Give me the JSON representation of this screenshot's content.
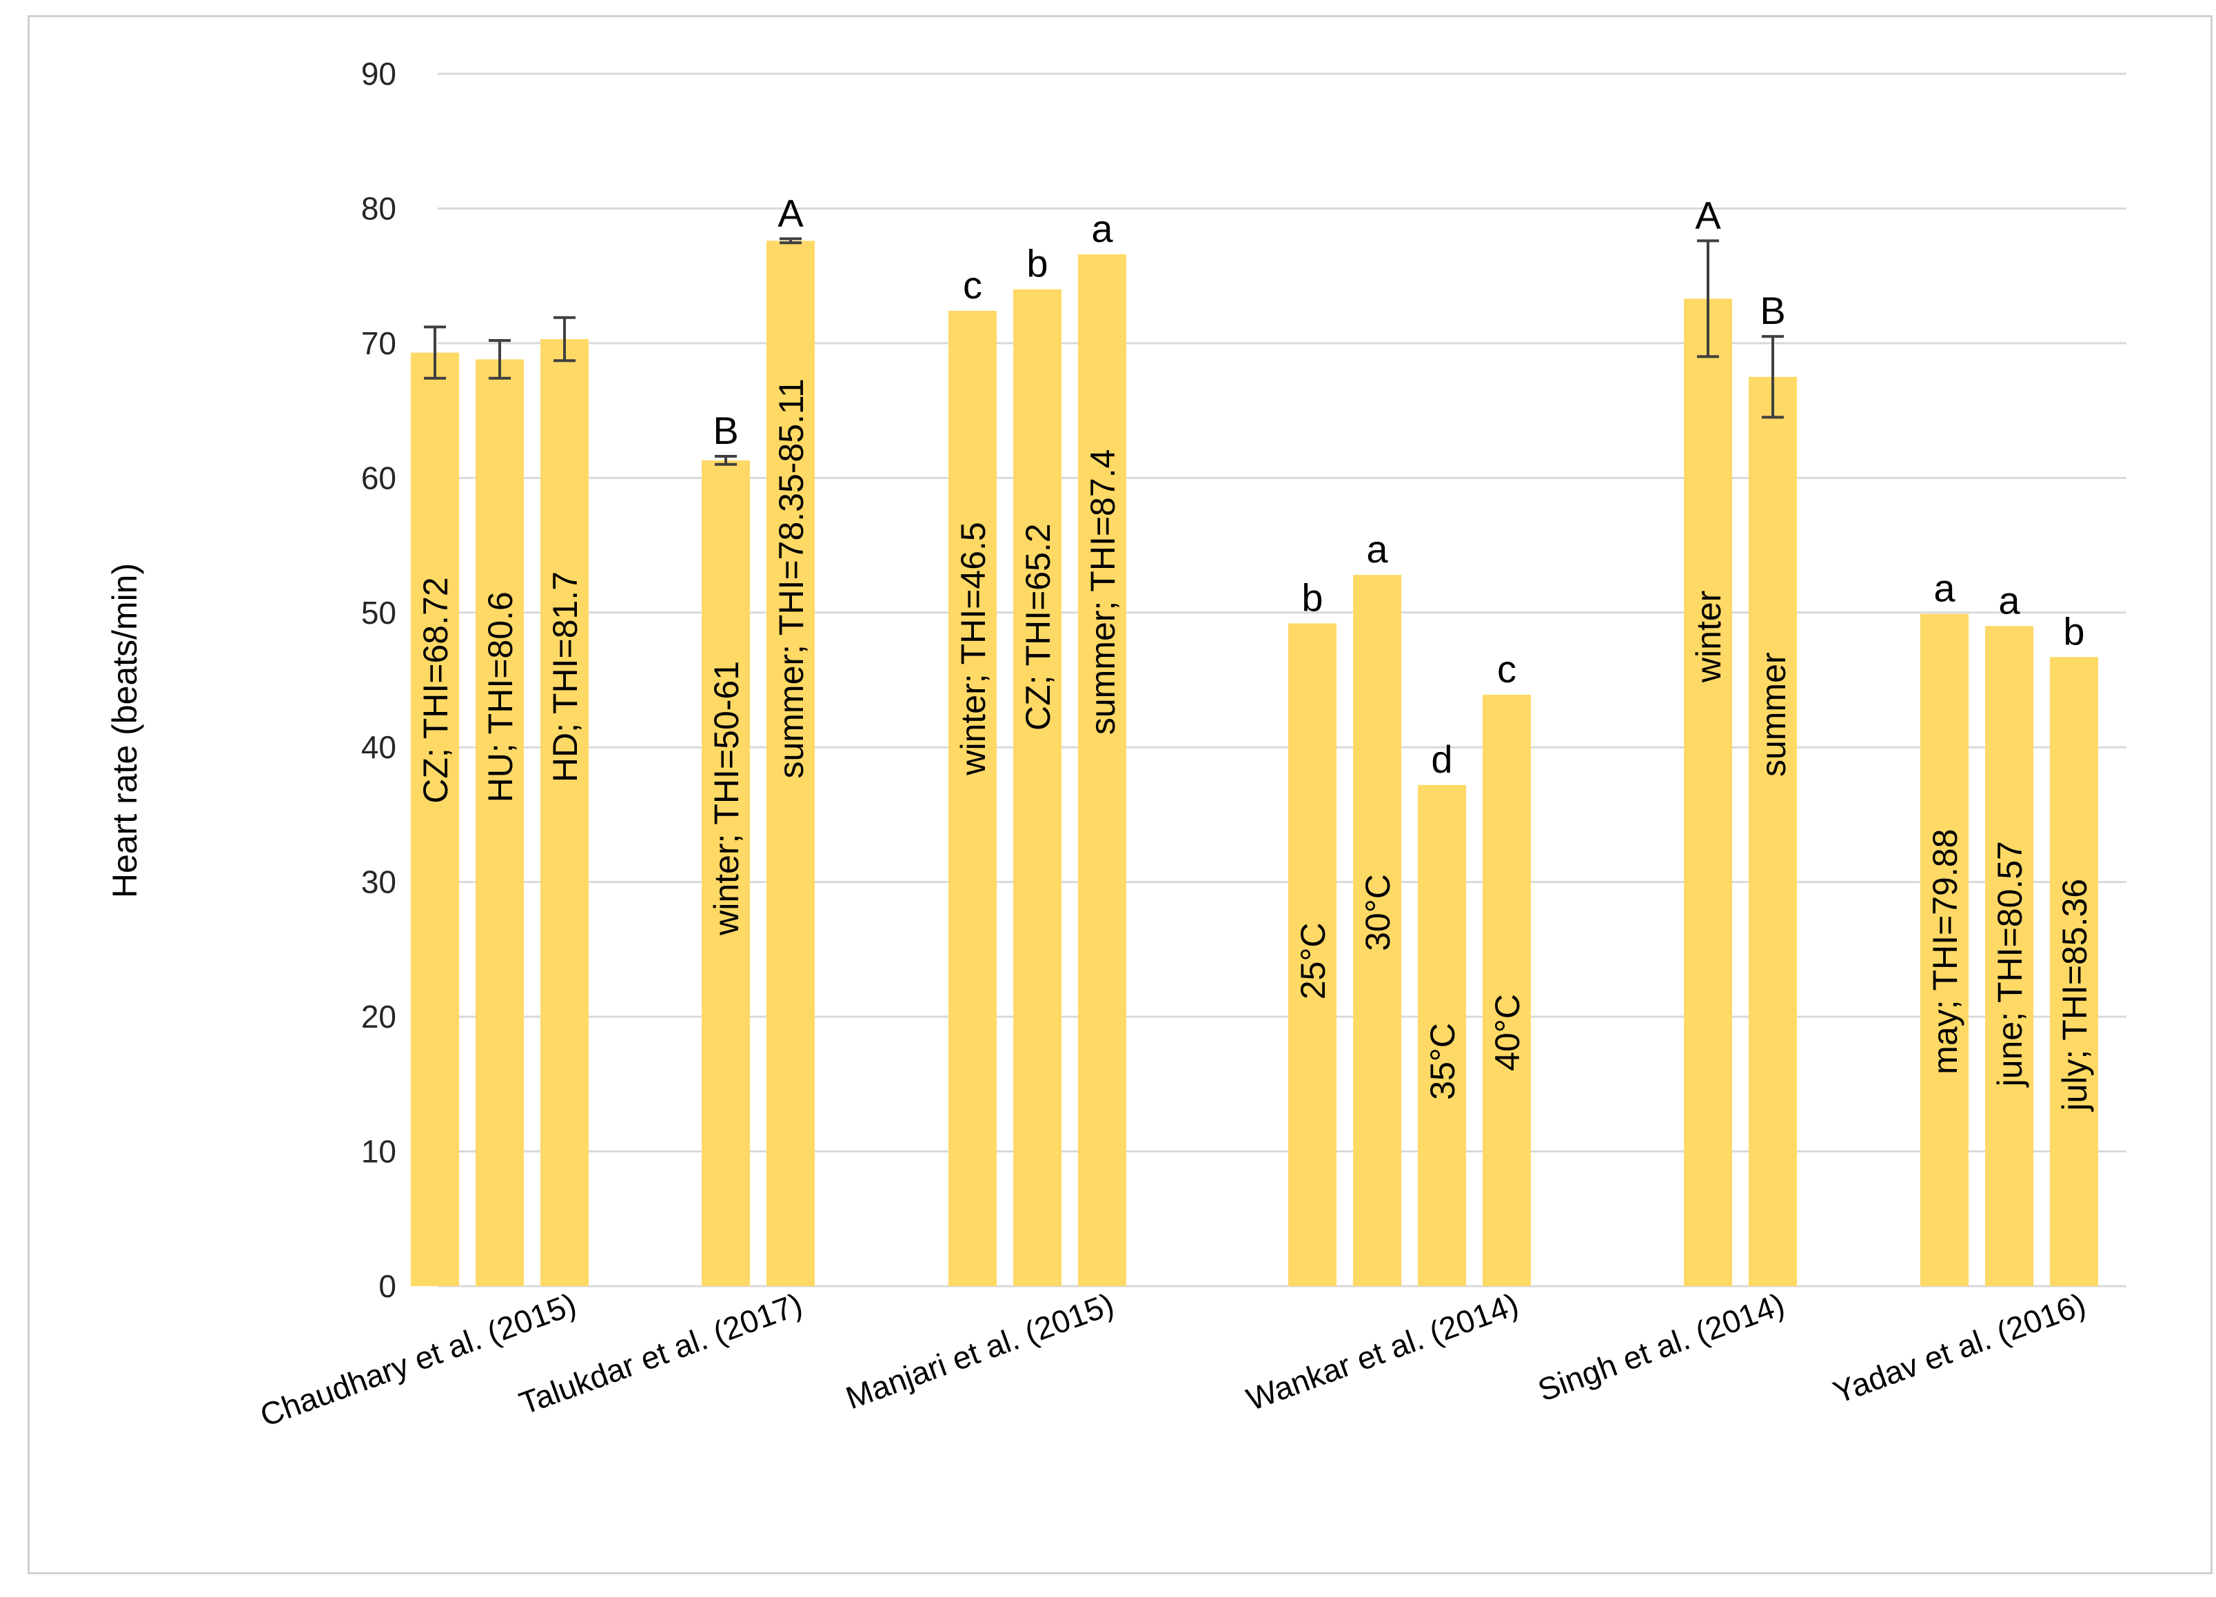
{
  "chart_data": {
    "type": "bar",
    "title": "",
    "xlabel": "",
    "ylabel": "Heart rate (beats/min)",
    "ylim": [
      0,
      90
    ],
    "yticks": [
      0,
      10,
      20,
      30,
      40,
      50,
      60,
      70,
      80,
      90
    ],
    "grid": true,
    "bar_color": "#ffd966",
    "grid_color": "#d9d9d9",
    "error_bar_color": "#404040",
    "groups": [
      {
        "name": "Chaudhary et al. (2015)",
        "bars": [
          {
            "label": "CZ; THI=68.72",
            "value": 69.3,
            "error": 1.9,
            "sig": ""
          },
          {
            "label": "HU; THI=80.6",
            "value": 68.8,
            "error": 1.4,
            "sig": ""
          },
          {
            "label": "HD; THI=81.7",
            "value": 70.3,
            "error": 1.6,
            "sig": ""
          }
        ]
      },
      {
        "name": "Talukdar et al. (2017)",
        "bars": [
          {
            "label": "winter; THI=50-61",
            "value": 61.3,
            "error": 0.3,
            "sig": "B"
          },
          {
            "label": "summer; THI=78.35-85.11",
            "value": 77.6,
            "error": 0.15,
            "sig": "A"
          }
        ]
      },
      {
        "name": "Manjari et al. (2015)",
        "bars": [
          {
            "label": "winter; THI=46.5",
            "value": 72.4,
            "error": null,
            "sig": "c"
          },
          {
            "label": "CZ; THI=65.2",
            "value": 74.0,
            "error": null,
            "sig": "b"
          },
          {
            "label": "summer; THI=87.4",
            "value": 76.6,
            "error": null,
            "sig": "a"
          }
        ]
      },
      {
        "name": "Wankar et al. (2014)",
        "bars": [
          {
            "label": "25°C",
            "value": 49.2,
            "error": null,
            "sig": "b"
          },
          {
            "label": "30°C",
            "value": 52.8,
            "error": null,
            "sig": "a"
          },
          {
            "label": "35°C",
            "value": 37.2,
            "error": null,
            "sig": "d"
          },
          {
            "label": "40°C",
            "value": 43.9,
            "error": null,
            "sig": "c"
          }
        ]
      },
      {
        "name": "Singh et al. (2014)",
        "bars": [
          {
            "label": "winter",
            "value": 73.3,
            "error": 4.3,
            "sig": "A"
          },
          {
            "label": "summer",
            "value": 67.5,
            "error": 3.0,
            "sig": "B"
          }
        ]
      },
      {
        "name": "Yadav et al. (2016)",
        "bars": [
          {
            "label": "may; THI=79.88",
            "value": 49.9,
            "error": null,
            "sig": "a"
          },
          {
            "label": "june; THI=80.57",
            "value": 49.0,
            "error": null,
            "sig": "a"
          },
          {
            "label": "july; THI=85.36",
            "value": 46.7,
            "error": null,
            "sig": "b"
          }
        ]
      }
    ]
  }
}
